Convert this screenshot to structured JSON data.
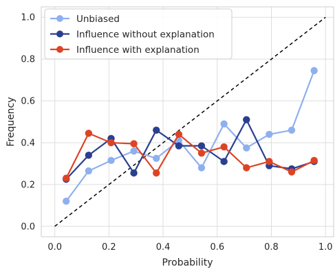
{
  "chart_data": {
    "type": "line",
    "xlabel": "Probability",
    "ylabel": "Frequency",
    "xlim": [
      -0.05,
      1.03
    ],
    "ylim": [
      -0.05,
      1.05
    ],
    "xticks": [
      "0.0",
      "0.2",
      "0.4",
      "0.6",
      "0.8",
      "1.0"
    ],
    "yticks": [
      "0.0",
      "0.2",
      "0.4",
      "0.6",
      "0.8",
      "1.0"
    ],
    "grid": true,
    "legend_position": "top-left",
    "reference_line": {
      "from": [
        0,
        0
      ],
      "to": [
        1,
        1
      ],
      "style": "dashed",
      "color": "#000000"
    },
    "x": [
      0.042,
      0.125,
      0.208,
      0.292,
      0.375,
      0.458,
      0.542,
      0.625,
      0.708,
      0.792,
      0.875,
      0.958
    ],
    "series": [
      {
        "name": "Unbiased",
        "color": "#8fb0ee",
        "values": [
          0.12,
          0.265,
          0.315,
          0.36,
          0.325,
          0.41,
          0.28,
          0.49,
          0.375,
          0.44,
          0.46,
          0.745
        ]
      },
      {
        "name": "Influence without explanation",
        "color": "#2a3f8f",
        "values": [
          0.225,
          0.34,
          0.42,
          0.255,
          0.46,
          0.385,
          0.385,
          0.31,
          0.51,
          0.29,
          0.275,
          0.31
        ]
      },
      {
        "name": "Influence with explanation",
        "color": "#dd4425",
        "values": [
          0.23,
          0.445,
          0.4,
          0.395,
          0.255,
          0.44,
          0.35,
          0.38,
          0.28,
          0.31,
          0.26,
          0.315
        ]
      }
    ]
  }
}
